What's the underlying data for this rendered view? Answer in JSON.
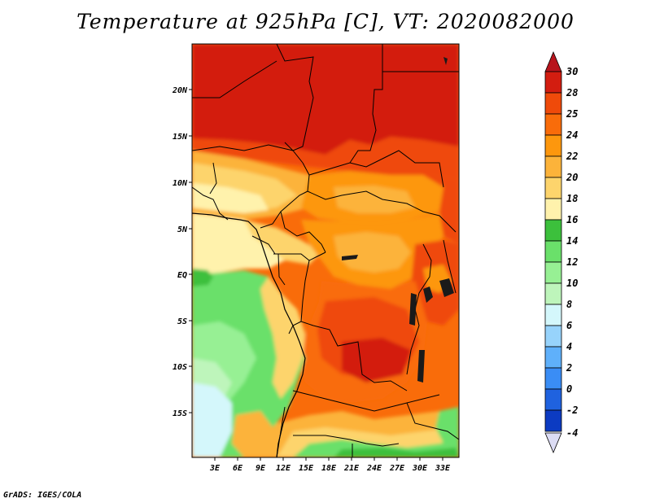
{
  "title": "Temperature at 925hPa [C], VT: 2020082000",
  "footer": "GrADS: IGES/COLA",
  "lat_ticks": [
    "20N",
    "15N",
    "10N",
    "5N",
    "EQ",
    "5S",
    "10S",
    "15S"
  ],
  "lon_ticks": [
    "3E",
    "6E",
    "9E",
    "12E",
    "15E",
    "18E",
    "21E",
    "24E",
    "27E",
    "30E",
    "33E"
  ],
  "colorbar": {
    "levels": [
      "30",
      "28",
      "25",
      "24",
      "22",
      "20",
      "18",
      "16",
      "14",
      "12",
      "10",
      "8",
      "6",
      "4",
      "2",
      "0",
      "-2",
      "-4"
    ],
    "colors": [
      "#d31d10",
      "#ef4a0a",
      "#f96c0a",
      "#fd970d",
      "#fcb33a",
      "#fdd46c",
      "#fff2ac",
      "#3cc03c",
      "#6ae06a",
      "#97f094",
      "#bef5bb",
      "#d4f7fb",
      "#97d3fb",
      "#5fb0fa",
      "#3a8df5",
      "#1f62df",
      "#0c3bc2",
      "#0a1878"
    ],
    "top_arrow_color": "#b8141c",
    "bottom_arrow_color": "#dcdcf4"
  },
  "map": {
    "lon_range": [
      0,
      35
    ],
    "lat_range": [
      -20,
      25
    ],
    "projection": "latlon"
  }
}
